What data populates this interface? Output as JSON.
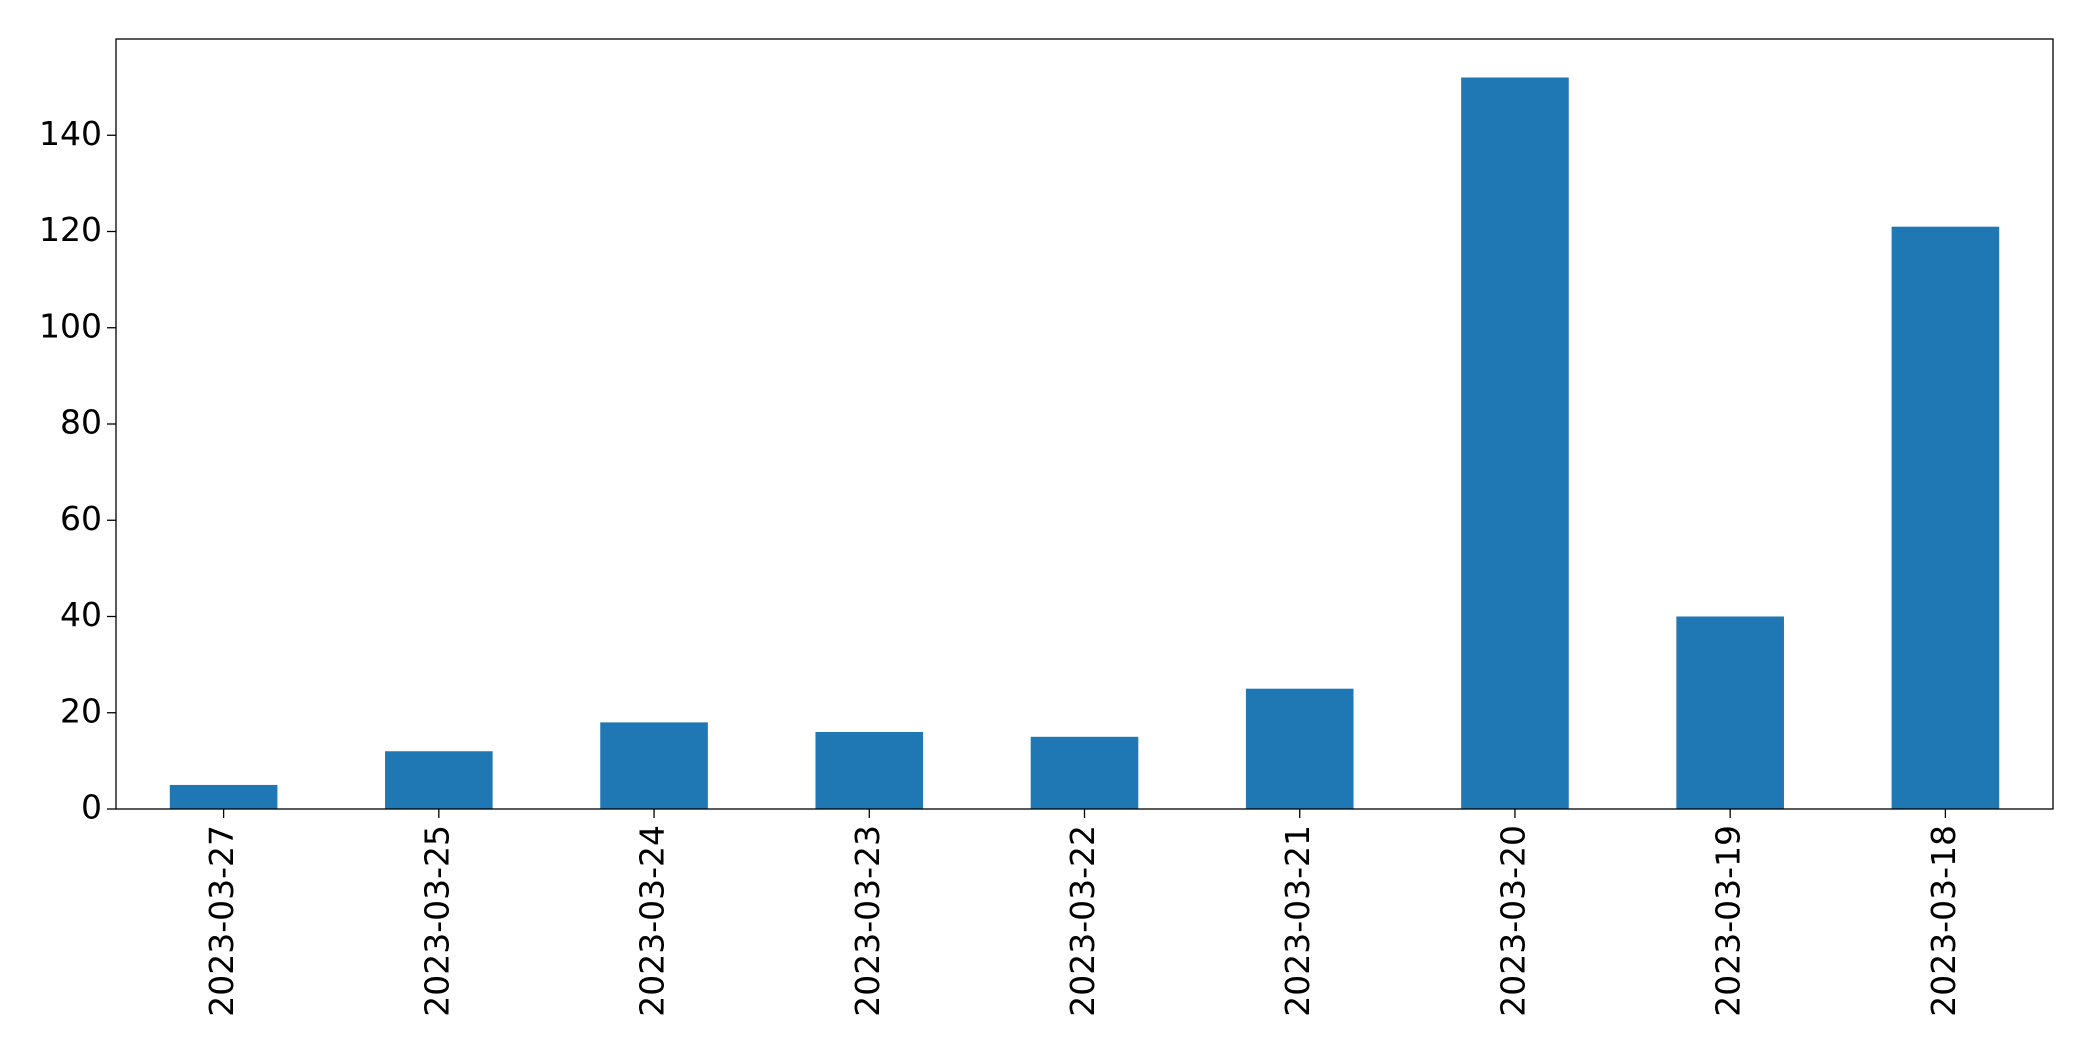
{
  "chart_data": {
    "type": "bar",
    "categories": [
      "2023-03-27",
      "2023-03-25",
      "2023-03-24",
      "2023-03-23",
      "2023-03-22",
      "2023-03-21",
      "2023-03-20",
      "2023-03-19",
      "2023-03-18"
    ],
    "values": [
      5,
      12,
      18,
      16,
      15,
      25,
      152,
      40,
      121
    ],
    "color": "#1f77b4",
    "ylim": [
      0,
      160
    ],
    "yticks": [
      0,
      20,
      40,
      60,
      80,
      100,
      120,
      140
    ],
    "grid": false
  }
}
